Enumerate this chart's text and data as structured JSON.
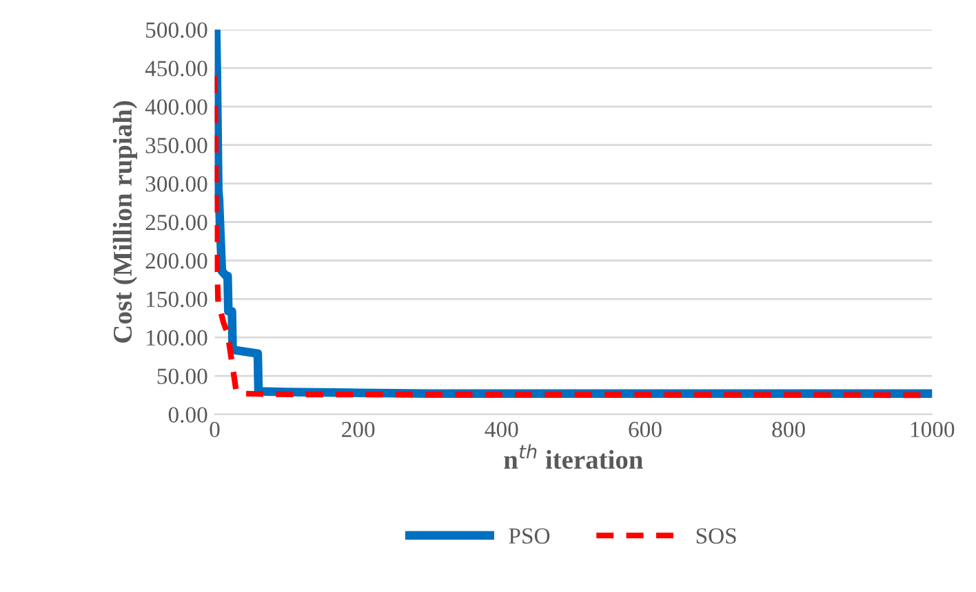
{
  "chart_data": {
    "type": "line",
    "xlabel": "n$^{th}$ iteration",
    "ylabel": "Cost (Million rupiah)",
    "xlim": [
      0,
      1000
    ],
    "xticks": [
      0,
      200,
      400,
      600,
      800,
      1000
    ],
    "ylim": [
      0,
      500
    ],
    "yticks": [
      {
        "value": 0,
        "label": "0.00"
      },
      {
        "value": 50,
        "label": "50.00"
      },
      {
        "value": 100,
        "label": "100.00"
      },
      {
        "value": 150,
        "label": "150.00"
      },
      {
        "value": 200,
        "label": "200.00"
      },
      {
        "value": 250,
        "label": "250.00"
      },
      {
        "value": 300,
        "label": "300.00"
      },
      {
        "value": 350,
        "label": "350.00"
      },
      {
        "value": 400,
        "label": "400.00"
      },
      {
        "value": 450,
        "label": "450.00"
      },
      {
        "value": 500,
        "label": "500.00"
      }
    ],
    "grid": "y",
    "legend": "bottom",
    "series": [
      {
        "name": "PSO",
        "color": "#0070c0",
        "line_style": "solid",
        "x": [
          0,
          2,
          3,
          5,
          6,
          10,
          16,
          18,
          19,
          24,
          25,
          60,
          61,
          100,
          200,
          300,
          500,
          1000
        ],
        "values": [
          500,
          500,
          445,
          290,
          280,
          186,
          180,
          180,
          134,
          134,
          84,
          79,
          30,
          29,
          28,
          27,
          27,
          27
        ]
      },
      {
        "name": "SOS",
        "color": "#ff0000",
        "line_style": "dashed",
        "x": [
          0,
          1,
          2,
          3,
          5,
          8,
          12,
          18,
          22,
          26,
          30,
          40,
          100,
          1000
        ],
        "values": [
          440,
          380,
          250,
          190,
          140,
          135,
          120,
          105,
          80,
          55,
          30,
          27,
          26,
          25
        ]
      }
    ]
  }
}
